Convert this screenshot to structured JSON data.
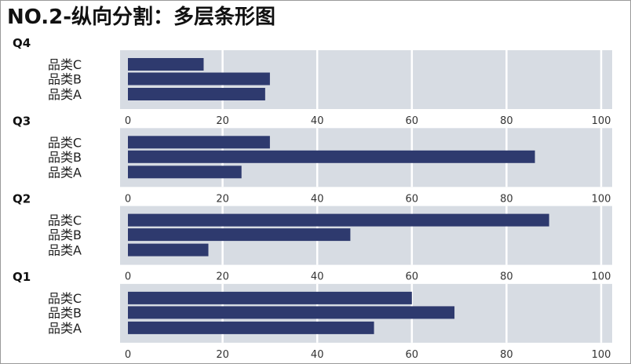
{
  "title": "NO.2-纵向分割：多层条形图",
  "chart_data": {
    "type": "bar",
    "orientation": "horizontal",
    "title": "NO.2-纵向分割：多层条形图",
    "xlim": [
      0,
      100
    ],
    "xticks": [
      "0",
      "20",
      "40",
      "60",
      "80",
      "100"
    ],
    "grid": true,
    "bar_color": "#2e3a6e",
    "panel_background": "#d7dce3",
    "categories": [
      "品类C",
      "品类B",
      "品类A"
    ],
    "panels": [
      {
        "name": "Q4",
        "values": [
          16,
          30,
          29
        ]
      },
      {
        "name": "Q3",
        "values": [
          30,
          86,
          24
        ]
      },
      {
        "name": "Q2",
        "values": [
          89,
          47,
          17
        ]
      },
      {
        "name": "Q1",
        "values": [
          60,
          69,
          52
        ]
      }
    ]
  }
}
